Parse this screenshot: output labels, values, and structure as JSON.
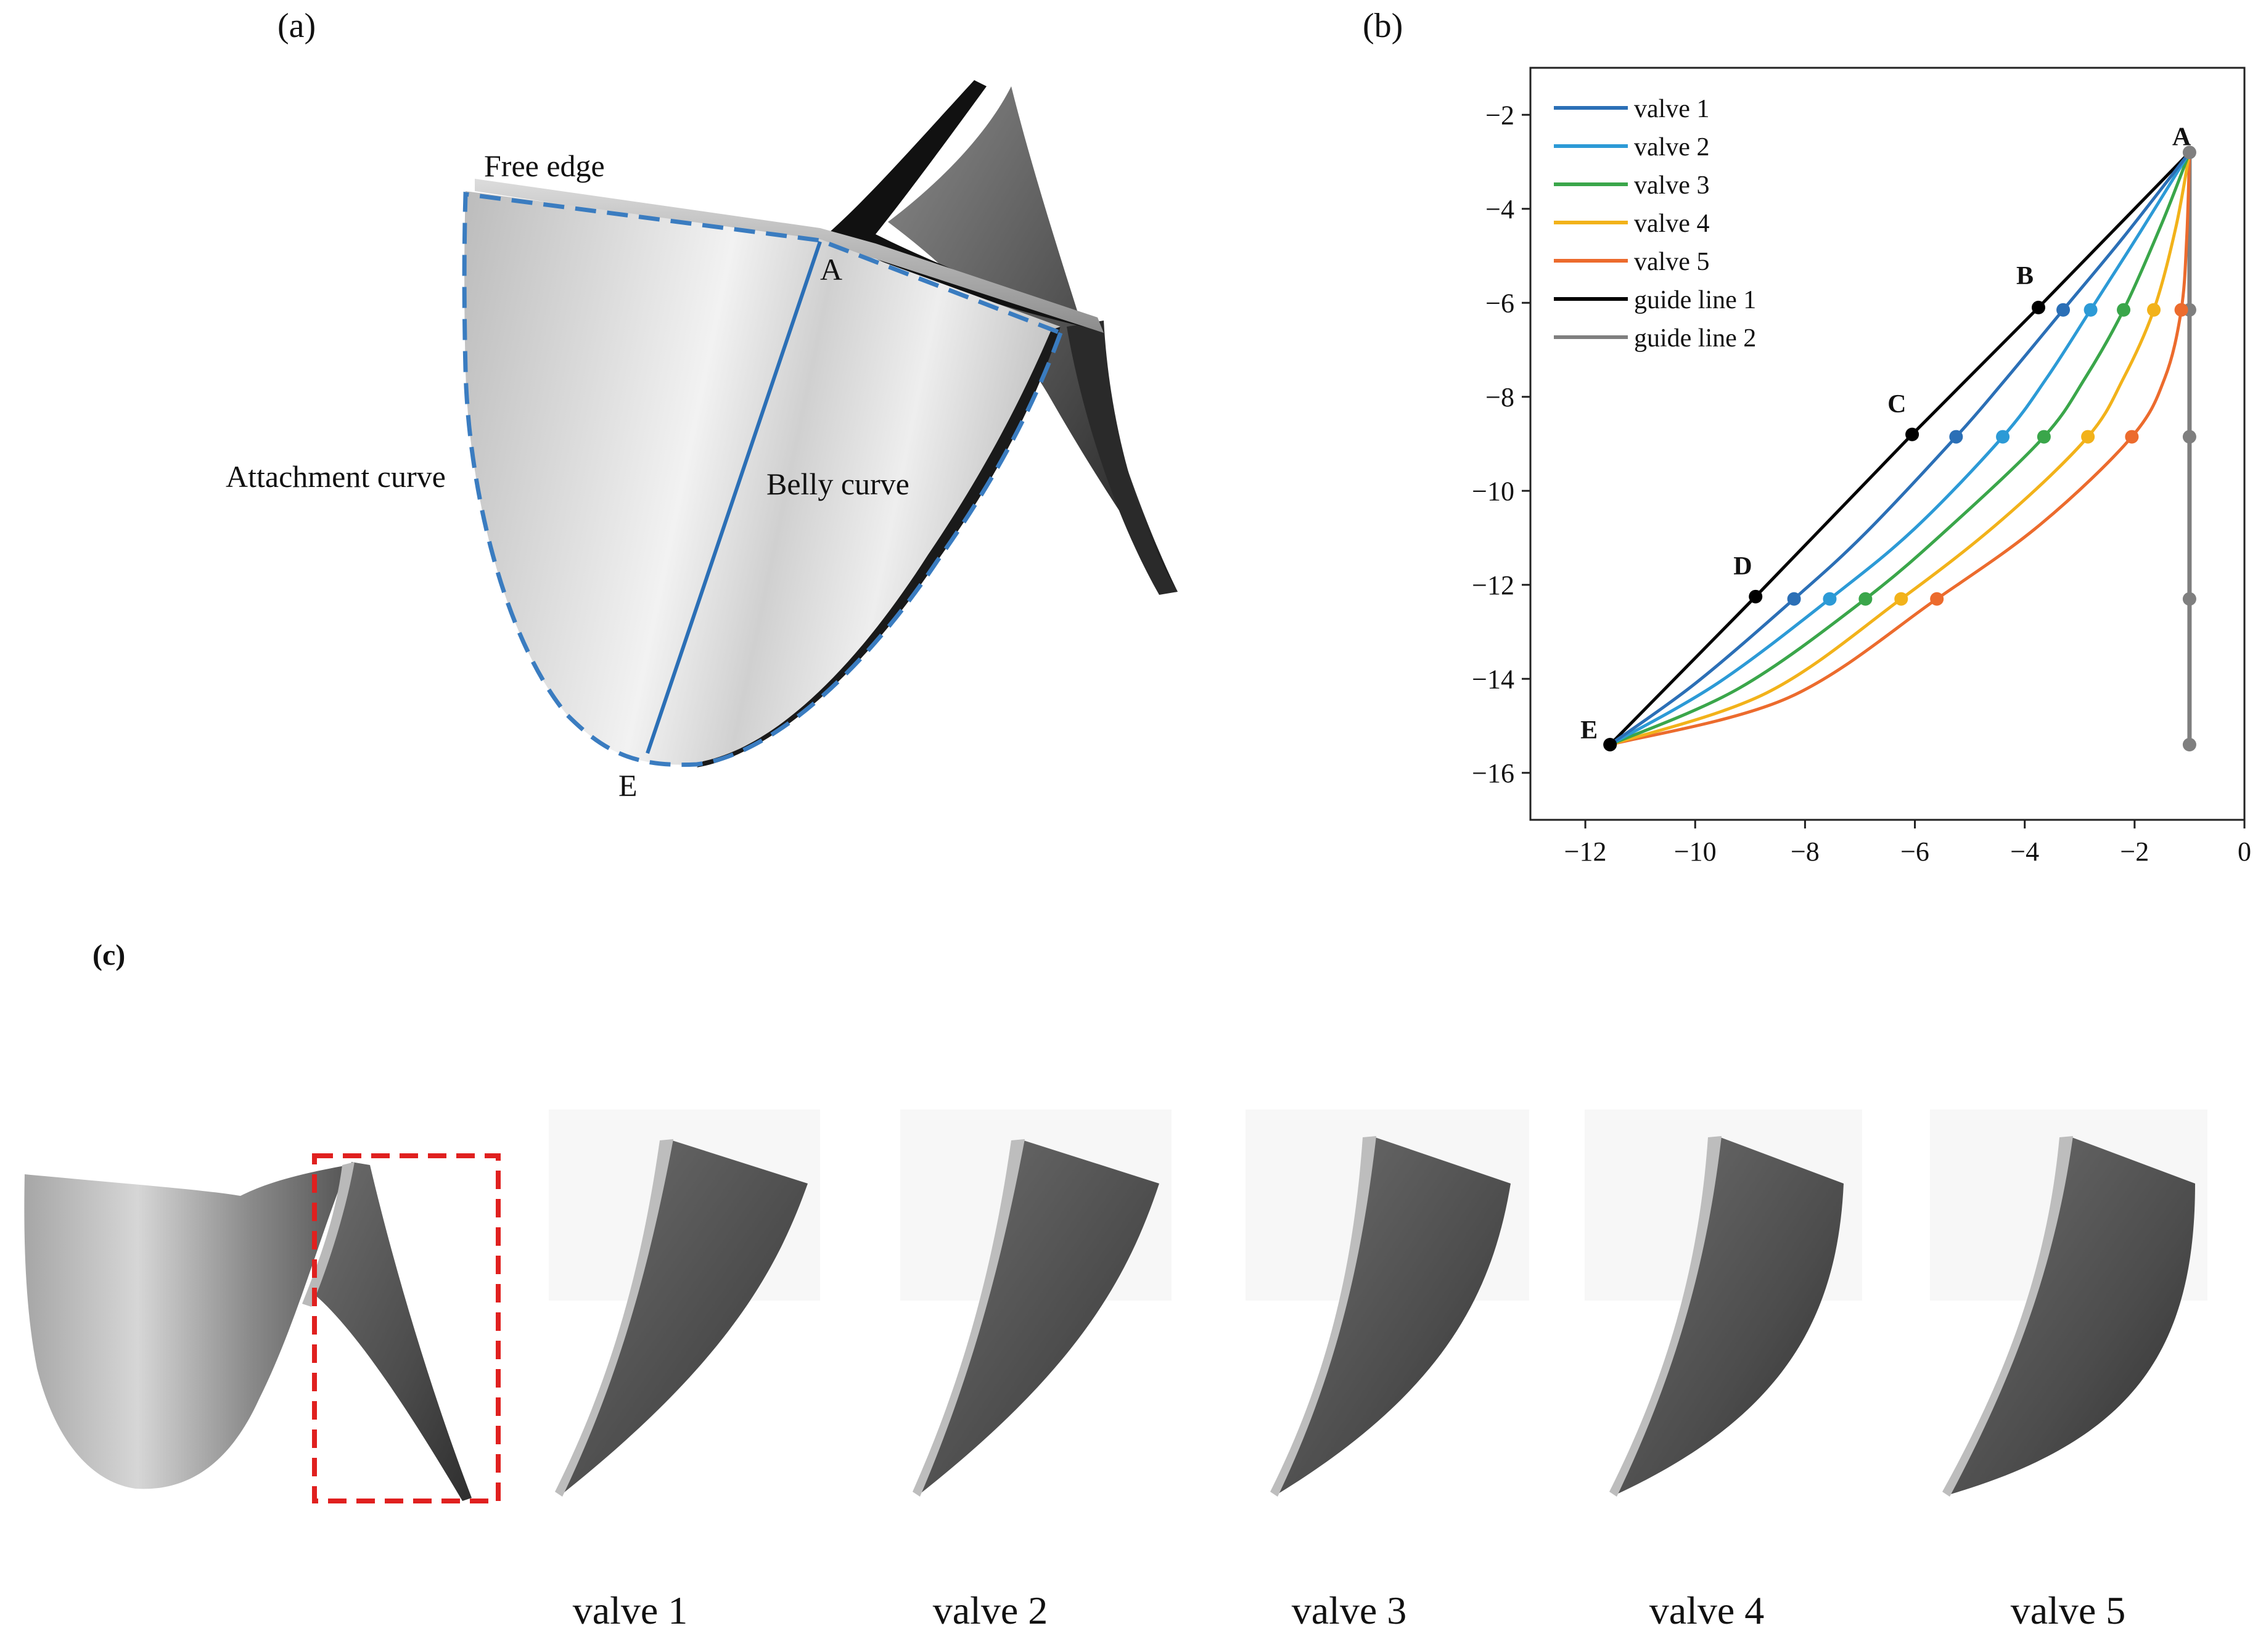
{
  "panels": {
    "a": {
      "label": "(a)",
      "annotations": {
        "free_edge": "Free edge",
        "attachment_curve": "Attachment curve",
        "belly_curve": "Belly curve",
        "point_a": "A",
        "point_e": "E"
      }
    },
    "b": {
      "label": "(b)"
    },
    "c": {
      "label": "(c)",
      "valve_labels": [
        "valve 1",
        "valve 2",
        "valve 3",
        "valve 4",
        "valve 5"
      ]
    }
  },
  "colors": {
    "valve 1": "#2b6fb6",
    "valve 2": "#2c9ad6",
    "valve 3": "#3aa64a",
    "valve 4": "#f2b21a",
    "valve 5": "#ec6b2d",
    "guide line 1": "#000000",
    "guide line 2": "#7f7f7f",
    "attachment_dashed": "#3a7cc0",
    "selection_box": "#e0201f"
  },
  "chart_data": {
    "type": "line",
    "xlim": [
      -13,
      0
    ],
    "ylim": [
      -17,
      -1
    ],
    "xticks": [
      -12,
      -10,
      -8,
      -6,
      -4,
      -2,
      0
    ],
    "yticks": [
      -2,
      -4,
      -6,
      -8,
      -10,
      -12,
      -14,
      -16
    ],
    "xtick_labels": [
      "−12",
      "−10",
      "−8",
      "−6",
      "−4",
      "−2",
      "0"
    ],
    "ytick_labels": [
      "−2",
      "−4",
      "−6",
      "−8",
      "−10",
      "−12",
      "−14",
      "−16"
    ],
    "legend_position": "top-left",
    "point_labels": [
      {
        "text": "A",
        "x": -1.0,
        "y": -2.8
      },
      {
        "text": "B",
        "x": -3.75,
        "y": -6.1
      },
      {
        "text": "C",
        "x": -6.05,
        "y": -8.8
      },
      {
        "text": "D",
        "x": -8.9,
        "y": -12.25
      },
      {
        "text": "E",
        "x": -11.55,
        "y": -15.4
      }
    ],
    "series": [
      {
        "name": "valve 1",
        "x": [
          -11.55,
          -10,
          -8.2,
          -6.9,
          -5.25,
          -4.4,
          -3.3,
          -2.2,
          -1.0
        ],
        "y": [
          -15.4,
          -14.1,
          -12.3,
          -10.9,
          -8.85,
          -7.7,
          -6.15,
          -4.6,
          -2.8
        ],
        "markers_x": [
          -8.2,
          -5.25,
          -3.3
        ],
        "markers_y": [
          -12.3,
          -8.85,
          -6.15
        ]
      },
      {
        "name": "valve 2",
        "x": [
          -11.55,
          -9.6,
          -7.55,
          -6.0,
          -4.4,
          -3.6,
          -2.8,
          -1.9,
          -1.0
        ],
        "y": [
          -15.4,
          -14.1,
          -12.3,
          -10.8,
          -8.85,
          -7.6,
          -6.15,
          -4.5,
          -2.8
        ],
        "markers_x": [
          -7.55,
          -4.4,
          -2.8
        ],
        "markers_y": [
          -12.3,
          -8.85,
          -6.15
        ]
      },
      {
        "name": "valve 3",
        "x": [
          -11.55,
          -9.2,
          -6.9,
          -5.3,
          -3.65,
          -2.9,
          -2.2,
          -1.5,
          -1.0
        ],
        "y": [
          -15.4,
          -14.2,
          -12.3,
          -10.7,
          -8.85,
          -7.6,
          -6.15,
          -4.3,
          -2.8
        ],
        "markers_x": [
          -6.9,
          -3.65,
          -2.2
        ],
        "markers_y": [
          -12.3,
          -8.85,
          -6.15
        ]
      },
      {
        "name": "valve 4",
        "x": [
          -11.55,
          -8.7,
          -6.25,
          -4.4,
          -2.85,
          -2.2,
          -1.65,
          -1.25,
          -1.0
        ],
        "y": [
          -15.4,
          -14.3,
          -12.3,
          -10.6,
          -8.85,
          -7.6,
          -6.15,
          -4.4,
          -2.8
        ],
        "markers_x": [
          -6.25,
          -2.85,
          -1.65
        ],
        "markers_y": [
          -12.3,
          -8.85,
          -6.15
        ]
      },
      {
        "name": "valve 5",
        "x": [
          -11.55,
          -8.3,
          -5.6,
          -3.7,
          -2.05,
          -1.45,
          -1.15,
          -1.05,
          -1.0
        ],
        "y": [
          -15.4,
          -14.4,
          -12.3,
          -10.7,
          -8.85,
          -7.6,
          -6.15,
          -4.6,
          -2.8
        ],
        "markers_x": [
          -5.6,
          -2.05,
          -1.15
        ],
        "markers_y": [
          -12.3,
          -8.85,
          -6.15
        ]
      },
      {
        "name": "guide line 1",
        "x": [
          -11.55,
          -8.9,
          -6.05,
          -3.75,
          -1.0
        ],
        "y": [
          -15.4,
          -12.25,
          -8.8,
          -6.1,
          -2.8
        ],
        "markers_x": [
          -11.55,
          -8.9,
          -6.05,
          -3.75
        ],
        "markers_y": [
          -15.4,
          -12.25,
          -8.8,
          -6.1
        ]
      },
      {
        "name": "guide line 2",
        "x": [
          -1.0,
          -1.0
        ],
        "y": [
          -2.8,
          -15.4
        ],
        "markers_x": [
          -1.0,
          -1.0,
          -1.0,
          -1.0,
          -1.0
        ],
        "markers_y": [
          -2.8,
          -6.15,
          -8.85,
          -12.3,
          -15.4
        ]
      }
    ]
  }
}
